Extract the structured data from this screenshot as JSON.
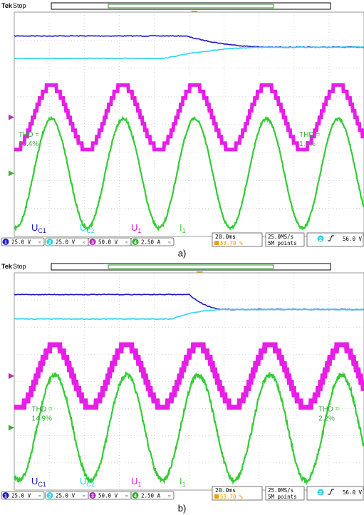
{
  "chart_data": [
    {
      "type": "line",
      "caption": "a)",
      "header": {
        "brand": "Tek",
        "status": "Stop",
        "trigger_marker": "T"
      },
      "grid": true,
      "x": {
        "divisions": 10,
        "units": "div"
      },
      "y": {
        "divisions": 8,
        "units": "div"
      },
      "trigger_x_div": 5.15,
      "series": [
        {
          "name": "U",
          "sub": "C1",
          "color": "#1a1ac8",
          "kind": "step",
          "y_before": 0.85,
          "y_after": 1.25,
          "x_start": 4.9,
          "x_end": 7.5
        },
        {
          "name": "U",
          "sub": "C2",
          "color": "#2ad4ee",
          "kind": "step",
          "y_before": 1.65,
          "y_after": 1.25,
          "x_start": 4.3,
          "x_end": 7.5
        },
        {
          "name": "U",
          "sub": "1",
          "color": "#e61ee6",
          "kind": "staircase",
          "center": 3.75,
          "amplitude": 1.15,
          "period_div": 2.05,
          "phase_div": 0.55,
          "steps": 5,
          "thickness": 5
        },
        {
          "name": "I",
          "sub": "1",
          "color": "#33cc33",
          "kind": "sine",
          "center": 5.75,
          "amplitude": 1.95,
          "period_div": 2.05,
          "phase_div": 0.55,
          "noise_before": 0.05,
          "noise_after": 0.04
        }
      ],
      "annotations": [
        {
          "label": "THD =",
          "value": "16.4%",
          "x_div": 0.12,
          "y_div": 4.45,
          "color": "#33aa33"
        },
        {
          "label": "THD =",
          "value": "1.5%",
          "x_div": 8.15,
          "y_div": 4.45,
          "color": "#33aa33"
        }
      ],
      "legend": {
        "placement": "bottom"
      },
      "status_bar": {
        "channels": [
          {
            "num": "1",
            "value": "25.0 V",
            "color": "#1a1ac8",
            "suffix": "≈"
          },
          {
            "num": "2",
            "value": "25.0 V",
            "color": "#2ad4ee",
            "suffix": "≈"
          },
          {
            "num": "3",
            "value": "50.0 V",
            "color": "#b020b0",
            "suffix": "≈"
          },
          {
            "num": "4",
            "value": "2.50 A",
            "color": "#33aa33",
            "suffix": "≈"
          }
        ],
        "timebase": "20.0ms",
        "trigger_pos": "53.70 %",
        "sample_rate": "25.0MS/s",
        "record_length": "5M points",
        "trigger_channel": "2",
        "trigger_level": "56.0 V"
      }
    },
    {
      "type": "line",
      "caption": "b)",
      "header": {
        "brand": "Tek",
        "status": "Stop",
        "trigger_marker": "T"
      },
      "grid": true,
      "x": {
        "divisions": 10,
        "units": "div"
      },
      "y": {
        "divisions": 8,
        "units": "div"
      },
      "trigger_x_div": 5.3,
      "series": [
        {
          "name": "U",
          "sub": "C1",
          "color": "#1a1ac8",
          "kind": "step",
          "y_before": 0.8,
          "y_after": 1.35,
          "x_start": 5.0,
          "x_end": 6.1
        },
        {
          "name": "U",
          "sub": "C2",
          "color": "#2ad4ee",
          "kind": "step",
          "y_before": 1.7,
          "y_after": 1.35,
          "x_start": 4.5,
          "x_end": 6.1
        },
        {
          "name": "U",
          "sub": "1",
          "color": "#e61ee6",
          "kind": "staircase",
          "center": 3.8,
          "amplitude": 1.15,
          "period_div": 2.05,
          "phase_div": 0.65,
          "steps": 5,
          "thickness": 7
        },
        {
          "name": "I",
          "sub": "1",
          "color": "#33cc33",
          "kind": "sine",
          "center": 5.7,
          "amplitude": 1.95,
          "period_div": 2.05,
          "phase_div": 0.65,
          "noise_before": 0.08,
          "noise_after": 0.09
        }
      ],
      "annotations": [
        {
          "label": "THD =",
          "value": "14.9%",
          "x_div": 0.5,
          "y_div": 5.1,
          "color": "#33aa33"
        },
        {
          "label": "THD =",
          "value": "2.2%",
          "x_div": 8.7,
          "y_div": 5.1,
          "color": "#33aa33"
        }
      ],
      "legend": {
        "placement": "bottom"
      },
      "status_bar": {
        "channels": [
          {
            "num": "1",
            "value": "25.0 V",
            "color": "#1a1ac8",
            "suffix": "≈"
          },
          {
            "num": "2",
            "value": "25.0 V",
            "color": "#2ad4ee",
            "suffix": "≈"
          },
          {
            "num": "3",
            "value": "50.0 V",
            "color": "#b020b0",
            "suffix": "≈"
          },
          {
            "num": "4",
            "value": "2.50 A",
            "color": "#33aa33",
            "suffix": "≈"
          }
        ],
        "timebase": "20.0ms",
        "trigger_pos": "53.70 %",
        "sample_rate": "25.0MS/s",
        "record_length": "5M points",
        "trigger_channel": "2",
        "trigger_level": "56.0 V"
      }
    }
  ]
}
